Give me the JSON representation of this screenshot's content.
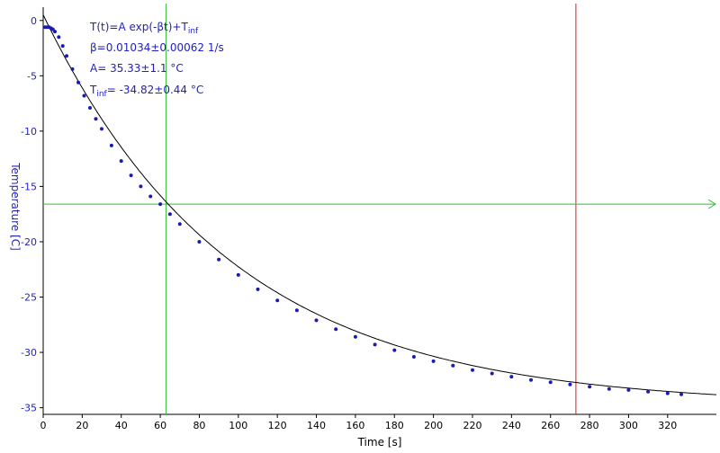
{
  "chart_data": {
    "type": "scatter",
    "xlabel": "Time [s]",
    "ylabel": "Temperature [C]",
    "xlim": [
      0,
      345
    ],
    "ylim": [
      -35.6,
      1.2
    ],
    "x_ticks": [
      0,
      20,
      40,
      60,
      80,
      100,
      120,
      140,
      160,
      180,
      200,
      220,
      240,
      260,
      280,
      300,
      320
    ],
    "y_ticks": [
      0,
      -5,
      -10,
      -15,
      -20,
      -25,
      -30,
      -35
    ],
    "x_tick_labels": [
      "0",
      "20",
      "40",
      "60",
      "80",
      "100",
      "120",
      "140",
      "160",
      "180",
      "200",
      "220",
      "240",
      "260",
      "280",
      "300",
      "320"
    ],
    "y_tick_labels": [
      "0",
      "-5",
      "-10",
      "-15",
      "-20",
      "-25",
      "-30",
      "-35"
    ],
    "annotations": {
      "formula_main": "T(t)=A exp(-βt)+T",
      "formula_sub": "inf",
      "beta": "β=0.01034±0.00062 1/s",
      "amplitude": "A= 35.33±1.1 °C",
      "tinf_prefix": "T",
      "tinf_sub": "inf",
      "tinf_value": "= -34.82±0.44 °C"
    },
    "fit": {
      "A": 35.33,
      "beta": 0.01034,
      "T_inf": -34.82,
      "x_range": [
        0,
        345
      ]
    },
    "data_points": {
      "x": [
        1,
        2,
        3,
        4,
        5,
        6,
        8,
        10,
        12,
        15,
        18,
        21,
        24,
        27,
        30,
        35,
        40,
        45,
        50,
        55,
        60,
        65,
        70,
        80,
        90,
        100,
        110,
        120,
        130,
        140,
        150,
        160,
        170,
        180,
        190,
        200,
        210,
        220,
        230,
        240,
        250,
        260,
        270,
        280,
        290,
        300,
        310,
        320,
        327
      ],
      "y": [
        -0.6,
        -0.6,
        -0.6,
        -0.7,
        -0.8,
        -1.0,
        -1.5,
        -2.3,
        -3.2,
        -4.4,
        -5.6,
        -6.8,
        -7.9,
        -8.9,
        -9.8,
        -11.3,
        -12.7,
        -14.0,
        -15.0,
        -15.9,
        -16.6,
        -17.5,
        -18.4,
        -20.0,
        -21.6,
        -23.0,
        -24.3,
        -25.3,
        -26.2,
        -27.1,
        -27.9,
        -28.6,
        -29.3,
        -29.8,
        -30.4,
        -30.8,
        -31.2,
        -31.6,
        -31.9,
        -32.2,
        -32.5,
        -32.7,
        -32.9,
        -33.1,
        -33.3,
        -33.4,
        -33.55,
        -33.7,
        -33.8
      ]
    },
    "markers": {
      "vertical_green_x": 63,
      "vertical_red_x": 273,
      "horizontal_green_y": -16.6
    },
    "colors": {
      "data": "#1a1ab4",
      "fit": "#000000",
      "green": "#33bb33",
      "red": "#cc2222",
      "tick_y": "#1f1fbf",
      "axis": "#000000"
    },
    "grid": false,
    "legend": "none"
  }
}
